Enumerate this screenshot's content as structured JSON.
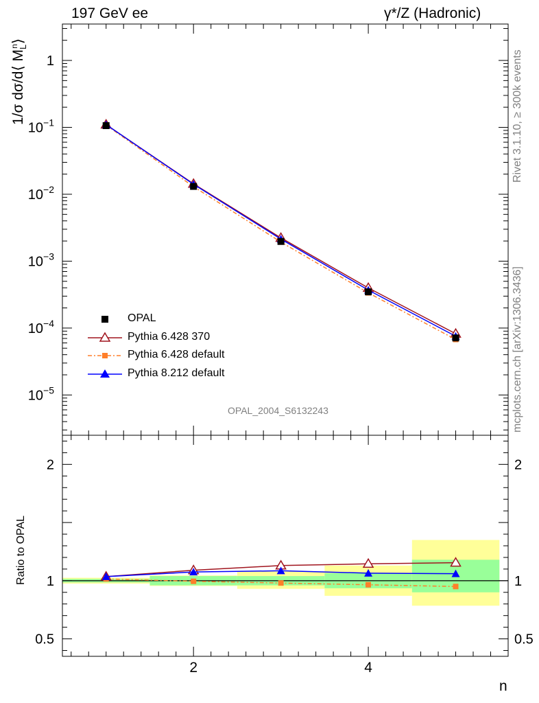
{
  "header": {
    "left": "197 GeV ee",
    "right": "γ*/Z (Hadronic)"
  },
  "side_text": {
    "rivet": "Rivet 3.1.10, ≥ 300k events",
    "mcplots": "mcplots.cern.ch [arXiv:1306.3436]"
  },
  "chart_data": [
    {
      "type": "line",
      "panel": "main",
      "analysis_label": "OPAL_2004_S6132243",
      "ylabel_text": "1/σ dσ/d⟨ M",
      "ylabel_sub": "L",
      "ylabel_sup": "n",
      "ylabel_tail": "⟩",
      "yscale": "log",
      "ylim": [
        2.5e-06,
        3.5
      ],
      "xlim": [
        0.5,
        5.6
      ],
      "y_ticks": [
        {
          "value": 1,
          "base": "1",
          "exp": ""
        },
        {
          "value": 0.1,
          "base": "10",
          "exp": "−1"
        },
        {
          "value": 0.01,
          "base": "10",
          "exp": "−2"
        },
        {
          "value": 0.001,
          "base": "10",
          "exp": "−3"
        },
        {
          "value": 0.0001,
          "base": "10",
          "exp": "−4"
        },
        {
          "value": 1e-05,
          "base": "10",
          "exp": "−5"
        }
      ],
      "x": [
        1,
        2,
        3,
        4,
        5
      ],
      "series": [
        {
          "name": "OPAL",
          "color": "#000000",
          "marker": "square",
          "values": [
            0.106,
            0.0131,
            0.00197,
            0.000348,
            7.12e-05
          ]
        },
        {
          "name": "Pythia 6.428 370",
          "color": "#a0141e",
          "marker": "triangle-open",
          "values": [
            0.11,
            0.0143,
            0.00223,
            0.000398,
            8.23e-05
          ]
        },
        {
          "name": "Pythia 6.428 default",
          "color": "#ff7f2a",
          "marker": "square-small",
          "dash": true,
          "values": [
            0.108,
            0.013,
            0.00193,
            0.000336,
            6.75e-05
          ]
        },
        {
          "name": "Pythia 8.212 default",
          "color": "#0000ff",
          "marker": "triangle-filled",
          "values": [
            0.11,
            0.0141,
            0.00214,
            0.00037,
            7.55e-05
          ]
        }
      ],
      "legend_position": "bottom-left"
    },
    {
      "type": "line",
      "panel": "ratio",
      "ylabel": "Ratio to OPAL",
      "xlabel": "n",
      "ylim": [
        0.35,
        2.25
      ],
      "xlim": [
        0.5,
        5.6
      ],
      "x_ticks": [
        2,
        4
      ],
      "y_ticks_left": [
        0.5,
        1,
        2
      ],
      "y_ticks_right": [
        0.5,
        1,
        2
      ],
      "x": [
        1,
        2,
        3,
        4,
        5
      ],
      "bins": [
        [
          0.5,
          1.5
        ],
        [
          1.5,
          2.5
        ],
        [
          2.5,
          3.5
        ],
        [
          3.5,
          4.5
        ],
        [
          4.5,
          5.5
        ]
      ],
      "band_inner": [
        [
          0.985,
          1.015
        ],
        [
          0.96,
          1.04
        ],
        [
          0.96,
          1.04
        ],
        [
          0.935,
          1.065
        ],
        [
          0.9,
          1.18
        ]
      ],
      "band_outer": [
        [
          0.975,
          1.025
        ],
        [
          0.955,
          1.045
        ],
        [
          0.93,
          1.08
        ],
        [
          0.87,
          1.13
        ],
        [
          0.785,
          1.35
        ]
      ],
      "series": [
        {
          "name": "Pythia 6.428 370",
          "values": [
            1.035,
            1.09,
            1.13,
            1.145,
            1.155
          ]
        },
        {
          "name": "Pythia 6.428 default",
          "values": [
            1.015,
            0.995,
            0.98,
            0.965,
            0.95
          ]
        },
        {
          "name": "Pythia 8.212 default",
          "values": [
            1.035,
            1.075,
            1.085,
            1.065,
            1.06
          ]
        }
      ]
    }
  ]
}
